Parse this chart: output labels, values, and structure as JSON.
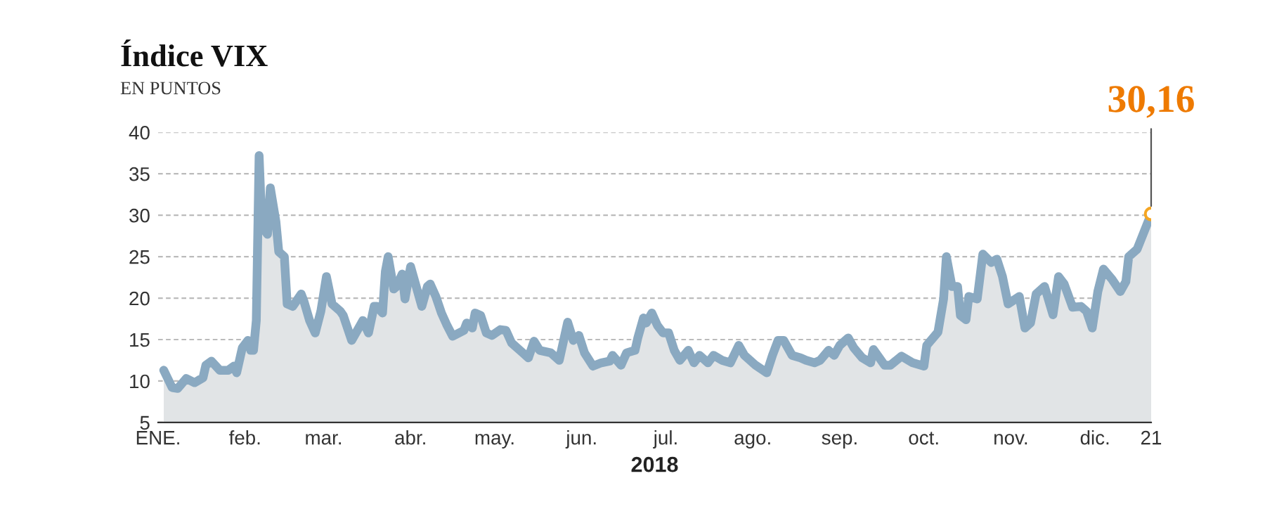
{
  "chart_data": {
    "type": "area",
    "title": "Índice VIX",
    "subtitle": "EN PUNTOS",
    "xlabel": "2018",
    "x": [
      "2018-01-03",
      "2018-01-06",
      "2018-01-08",
      "2018-01-11",
      "2018-01-14",
      "2018-01-17",
      "2018-01-18",
      "2018-01-20",
      "2018-01-23",
      "2018-01-26",
      "2018-01-28",
      "2018-01-29",
      "2018-01-31",
      "2018-02-02",
      "2018-02-03",
      "2018-02-04",
      "2018-02-05",
      "2018-02-06",
      "2018-02-07",
      "2018-02-09",
      "2018-02-10",
      "2018-02-12",
      "2018-02-13",
      "2018-02-15",
      "2018-02-16",
      "2018-02-18",
      "2018-02-21",
      "2018-02-22",
      "2018-02-24",
      "2018-02-26",
      "2018-02-28",
      "2018-03-02",
      "2018-03-04",
      "2018-03-07",
      "2018-03-08",
      "2018-03-11",
      "2018-03-12",
      "2018-03-15",
      "2018-03-17",
      "2018-03-19",
      "2018-03-20",
      "2018-03-22",
      "2018-03-23",
      "2018-03-24",
      "2018-03-26",
      "2018-03-27",
      "2018-03-29",
      "2018-03-30",
      "2018-04-01",
      "2018-04-03",
      "2018-04-05",
      "2018-04-07",
      "2018-04-08",
      "2018-04-10",
      "2018-04-12",
      "2018-04-14",
      "2018-04-16",
      "2018-04-20",
      "2018-04-21",
      "2018-04-23",
      "2018-04-24",
      "2018-04-26",
      "2018-04-28",
      "2018-04-30",
      "2018-05-03",
      "2018-05-05",
      "2018-05-07",
      "2018-05-10",
      "2018-05-13",
      "2018-05-15",
      "2018-05-17",
      "2018-05-21",
      "2018-05-24",
      "2018-05-27",
      "2018-05-29",
      "2018-05-31",
      "2018-06-02",
      "2018-06-05",
      "2018-06-08",
      "2018-06-11",
      "2018-06-12",
      "2018-06-15",
      "2018-06-17",
      "2018-06-20",
      "2018-06-21",
      "2018-06-23",
      "2018-06-24",
      "2018-06-26",
      "2018-06-28",
      "2018-06-30",
      "2018-07-02",
      "2018-07-04",
      "2018-07-06",
      "2018-07-09",
      "2018-07-11",
      "2018-07-13",
      "2018-07-16",
      "2018-07-18",
      "2018-07-21",
      "2018-07-24",
      "2018-07-27",
      "2018-07-29",
      "2018-08-02",
      "2018-08-06",
      "2018-08-08",
      "2018-08-10",
      "2018-08-12",
      "2018-08-15",
      "2018-08-18",
      "2018-08-20",
      "2018-08-23",
      "2018-08-25",
      "2018-08-28",
      "2018-08-30",
      "2018-09-01",
      "2018-09-04",
      "2018-09-06",
      "2018-09-09",
      "2018-09-12",
      "2018-09-13",
      "2018-09-17",
      "2018-09-19",
      "2018-09-23",
      "2018-09-27",
      "2018-10-01",
      "2018-10-02",
      "2018-10-06",
      "2018-10-08",
      "2018-10-09",
      "2018-10-11",
      "2018-10-13",
      "2018-10-14",
      "2018-10-16",
      "2018-10-17",
      "2018-10-20",
      "2018-10-22",
      "2018-10-25",
      "2018-10-27",
      "2018-10-29",
      "2018-10-31",
      "2018-11-04",
      "2018-11-06",
      "2018-11-08",
      "2018-11-10",
      "2018-11-13",
      "2018-11-16",
      "2018-11-18",
      "2018-11-20",
      "2018-11-23",
      "2018-11-26",
      "2018-11-28",
      "2018-11-30",
      "2018-12-02",
      "2018-12-04",
      "2018-12-07",
      "2018-12-10",
      "2018-12-12",
      "2018-12-13",
      "2018-12-16",
      "2018-12-21"
    ],
    "series": [
      {
        "color": "#8aa9c1",
        "values": [
          11.3,
          9.2,
          9.1,
          10.3,
          9.8,
          10.4,
          11.9,
          12.4,
          11.3,
          11.3,
          11.8,
          11.0,
          14.0,
          14.9,
          13.7,
          13.7,
          17.3,
          37.2,
          28.6,
          27.7,
          33.3,
          29.2,
          25.6,
          25.0,
          19.3,
          19.0,
          20.5,
          19.6,
          17.3,
          15.8,
          18.4,
          22.6,
          19.3,
          18.4,
          17.9,
          14.9,
          15.5,
          17.3,
          15.8,
          19.0,
          19.0,
          18.2,
          23.2,
          25.0,
          21.1,
          21.4,
          22.9,
          19.9,
          23.8,
          21.4,
          19.0,
          21.4,
          21.7,
          20.2,
          18.2,
          16.7,
          15.4,
          16.1,
          17.0,
          16.4,
          18.2,
          17.9,
          15.8,
          15.5,
          16.2,
          16.1,
          14.6,
          13.7,
          12.8,
          14.8,
          13.7,
          13.4,
          12.5,
          17.1,
          14.9,
          15.5,
          13.4,
          11.8,
          12.2,
          12.4,
          13.1,
          11.9,
          13.4,
          13.7,
          15.2,
          17.6,
          17.0,
          18.2,
          16.7,
          15.8,
          15.8,
          13.7,
          12.5,
          13.7,
          12.2,
          13.1,
          12.2,
          13.1,
          12.5,
          12.2,
          14.3,
          13.1,
          11.9,
          11.0,
          13.1,
          14.9,
          14.9,
          13.1,
          12.8,
          12.5,
          12.2,
          12.5,
          13.7,
          13.1,
          14.3,
          15.2,
          14.0,
          12.8,
          12.2,
          13.8,
          11.9,
          11.9,
          13.0,
          12.2,
          11.8,
          14.3,
          15.9,
          19.9,
          25.0,
          21.4,
          21.4,
          17.9,
          17.4,
          20.2,
          19.9,
          25.3,
          24.3,
          24.7,
          22.6,
          19.3,
          20.2,
          16.4,
          17.0,
          20.5,
          21.4,
          18.0,
          22.6,
          21.7,
          18.9,
          19.0,
          18.4,
          16.4,
          20.8,
          23.5,
          22.3,
          20.8,
          22.0,
          25.0,
          25.9,
          30.16
        ]
      }
    ],
    "xlim": [
      "2018-01-01",
      "2018-12-21"
    ],
    "xticks": [
      {
        "value": "2018-01-01",
        "label": "ENE."
      },
      {
        "value": "2018-02-01",
        "label": "feb."
      },
      {
        "value": "2018-03-01",
        "label": "mar."
      },
      {
        "value": "2018-04-01",
        "label": "abr."
      },
      {
        "value": "2018-05-01",
        "label": "may."
      },
      {
        "value": "2018-06-01",
        "label": "jun."
      },
      {
        "value": "2018-07-01",
        "label": "jul."
      },
      {
        "value": "2018-08-01",
        "label": "ago."
      },
      {
        "value": "2018-09-01",
        "label": "sep."
      },
      {
        "value": "2018-10-01",
        "label": "oct."
      },
      {
        "value": "2018-11-01",
        "label": "nov."
      },
      {
        "value": "2018-12-01",
        "label": "dic."
      },
      {
        "value": "2018-12-21",
        "label": "21"
      }
    ],
    "ylim": [
      5,
      40
    ],
    "yticks": [
      5,
      10,
      15,
      20,
      25,
      30,
      35,
      40
    ],
    "grid": "y",
    "annotations": [
      {
        "text": "30,16",
        "x": "2018-12-21",
        "y": 30.16
      }
    ]
  }
}
